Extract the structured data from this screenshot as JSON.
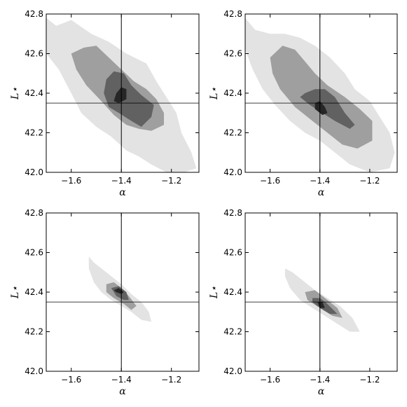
{
  "figure": {
    "layout": "2x2 grid of contour plots",
    "colors": {
      "contour_levels": [
        "#e3e3e3",
        "#9f9f9f",
        "#616161",
        "#262626"
      ],
      "axes": "#000000",
      "reference_lines": "#000000"
    }
  },
  "chart_data": [
    {
      "type": "contour",
      "panel": "top-left",
      "xlabel": "α",
      "ylabel": "L⋆",
      "xlim": [
        -1.7,
        -1.09
      ],
      "ylim": [
        42.0,
        42.8
      ],
      "xticks": [
        -1.6,
        -1.4,
        -1.2
      ],
      "xtick_labels": [
        "−1.6",
        "−1.4",
        "−1.2"
      ],
      "yticks": [
        42.0,
        42.2,
        42.4,
        42.6,
        42.8
      ],
      "ytick_labels": [
        "42.0",
        "42.2",
        "42.4",
        "42.6",
        "42.8"
      ],
      "reference_lines": {
        "x": -1.4,
        "y": 42.35
      },
      "contours": [
        {
          "level": 1,
          "points": [
            [
              -1.7,
              42.78
            ],
            [
              -1.66,
              42.74
            ],
            [
              -1.6,
              42.77
            ],
            [
              -1.52,
              42.7
            ],
            [
              -1.45,
              42.66
            ],
            [
              -1.38,
              42.6
            ],
            [
              -1.3,
              42.55
            ],
            [
              -1.26,
              42.46
            ],
            [
              -1.22,
              42.38
            ],
            [
              -1.18,
              42.3
            ],
            [
              -1.16,
              42.2
            ],
            [
              -1.12,
              42.1
            ],
            [
              -1.1,
              42.02
            ],
            [
              -1.15,
              42.0
            ],
            [
              -1.22,
              42.0
            ],
            [
              -1.28,
              42.04
            ],
            [
              -1.33,
              42.08
            ],
            [
              -1.38,
              42.11
            ],
            [
              -1.44,
              42.18
            ],
            [
              -1.5,
              42.23
            ],
            [
              -1.56,
              42.3
            ],
            [
              -1.6,
              42.4
            ],
            [
              -1.65,
              42.52
            ],
            [
              -1.7,
              42.6
            ]
          ]
        },
        {
          "level": 2,
          "points": [
            [
              -1.6,
              42.6
            ],
            [
              -1.55,
              42.63
            ],
            [
              -1.5,
              42.64
            ],
            [
              -1.45,
              42.58
            ],
            [
              -1.4,
              42.52
            ],
            [
              -1.35,
              42.46
            ],
            [
              -1.3,
              42.42
            ],
            [
              -1.26,
              42.37
            ],
            [
              -1.23,
              42.3
            ],
            [
              -1.23,
              42.24
            ],
            [
              -1.28,
              42.21
            ],
            [
              -1.33,
              42.22
            ],
            [
              -1.38,
              42.24
            ],
            [
              -1.43,
              42.29
            ],
            [
              -1.48,
              42.36
            ],
            [
              -1.54,
              42.44
            ],
            [
              -1.58,
              42.52
            ]
          ]
        },
        {
          "level": 3,
          "points": [
            [
              -1.46,
              42.47
            ],
            [
              -1.43,
              42.51
            ],
            [
              -1.39,
              42.5
            ],
            [
              -1.36,
              42.44
            ],
            [
              -1.32,
              42.39
            ],
            [
              -1.27,
              42.34
            ],
            [
              -1.28,
              42.28
            ],
            [
              -1.32,
              42.23
            ],
            [
              -1.36,
              42.26
            ],
            [
              -1.41,
              42.3
            ],
            [
              -1.45,
              42.33
            ],
            [
              -1.47,
              42.4
            ]
          ]
        },
        {
          "level": 4,
          "points": [
            [
              -1.42,
              42.4
            ],
            [
              -1.4,
              42.43
            ],
            [
              -1.38,
              42.42
            ],
            [
              -1.38,
              42.37
            ],
            [
              -1.41,
              42.35
            ],
            [
              -1.43,
              42.36
            ]
          ]
        }
      ]
    },
    {
      "type": "contour",
      "panel": "top-right",
      "xlabel": "α",
      "ylabel": "L⋆",
      "xlim": [
        -1.7,
        -1.09
      ],
      "ylim": [
        42.0,
        42.8
      ],
      "xticks": [
        -1.6,
        -1.4,
        -1.2
      ],
      "xtick_labels": [
        "−1.6",
        "−1.4",
        "−1.2"
      ],
      "yticks": [
        42.0,
        42.2,
        42.4,
        42.6,
        42.8
      ],
      "ytick_labels": [
        "42.0",
        "42.2",
        "42.4",
        "42.6",
        "42.8"
      ],
      "reference_lines": {
        "x": -1.4,
        "y": 42.35
      },
      "contours": [
        {
          "level": 1,
          "points": [
            [
              -1.7,
              42.78
            ],
            [
              -1.66,
              42.72
            ],
            [
              -1.6,
              42.7
            ],
            [
              -1.54,
              42.7
            ],
            [
              -1.48,
              42.68
            ],
            [
              -1.42,
              42.64
            ],
            [
              -1.36,
              42.58
            ],
            [
              -1.3,
              42.5
            ],
            [
              -1.26,
              42.42
            ],
            [
              -1.2,
              42.36
            ],
            [
              -1.16,
              42.28
            ],
            [
              -1.12,
              42.2
            ],
            [
              -1.1,
              42.1
            ],
            [
              -1.12,
              42.02
            ],
            [
              -1.2,
              42.0
            ],
            [
              -1.28,
              42.04
            ],
            [
              -1.34,
              42.1
            ],
            [
              -1.4,
              42.16
            ],
            [
              -1.46,
              42.2
            ],
            [
              -1.52,
              42.26
            ],
            [
              -1.58,
              42.34
            ],
            [
              -1.63,
              42.42
            ],
            [
              -1.67,
              42.52
            ],
            [
              -1.7,
              42.62
            ]
          ]
        },
        {
          "level": 2,
          "points": [
            [
              -1.6,
              42.58
            ],
            [
              -1.55,
              42.64
            ],
            [
              -1.5,
              42.62
            ],
            [
              -1.46,
              42.56
            ],
            [
              -1.42,
              42.5
            ],
            [
              -1.37,
              42.44
            ],
            [
              -1.3,
              42.38
            ],
            [
              -1.24,
              42.32
            ],
            [
              -1.19,
              42.26
            ],
            [
              -1.19,
              42.16
            ],
            [
              -1.25,
              42.12
            ],
            [
              -1.31,
              42.14
            ],
            [
              -1.37,
              42.2
            ],
            [
              -1.43,
              42.26
            ],
            [
              -1.5,
              42.33
            ],
            [
              -1.56,
              42.42
            ],
            [
              -1.59,
              42.5
            ]
          ]
        },
        {
          "level": 3,
          "points": [
            [
              -1.46,
              42.4
            ],
            [
              -1.42,
              42.42
            ],
            [
              -1.38,
              42.42
            ],
            [
              -1.34,
              42.38
            ],
            [
              -1.3,
              42.3
            ],
            [
              -1.26,
              42.24
            ],
            [
              -1.28,
              42.22
            ],
            [
              -1.34,
              42.26
            ],
            [
              -1.39,
              42.3
            ],
            [
              -1.44,
              42.34
            ],
            [
              -1.48,
              42.38
            ]
          ]
        },
        {
          "level": 4,
          "points": [
            [
              -1.42,
              42.35
            ],
            [
              -1.4,
              42.36
            ],
            [
              -1.38,
              42.33
            ],
            [
              -1.37,
              42.3
            ],
            [
              -1.39,
              42.29
            ],
            [
              -1.42,
              42.32
            ]
          ]
        }
      ]
    },
    {
      "type": "contour",
      "panel": "bottom-left",
      "xlabel": "α",
      "ylabel": "L⋆",
      "xlim": [
        -1.7,
        -1.09
      ],
      "ylim": [
        42.0,
        42.8
      ],
      "xticks": [
        -1.6,
        -1.4,
        -1.2
      ],
      "xtick_labels": [
        "−1.6",
        "−1.4",
        "−1.2"
      ],
      "yticks": [
        42.0,
        42.2,
        42.4,
        42.6,
        42.8
      ],
      "ytick_labels": [
        "42.0",
        "42.2",
        "42.4",
        "42.6",
        "42.8"
      ],
      "reference_lines": {
        "x": -1.4,
        "y": 42.35
      },
      "contours": [
        {
          "level": 1,
          "points": [
            [
              -1.53,
              42.58
            ],
            [
              -1.51,
              42.55
            ],
            [
              -1.48,
              42.52
            ],
            [
              -1.44,
              42.48
            ],
            [
              -1.4,
              42.44
            ],
            [
              -1.36,
              42.39
            ],
            [
              -1.32,
              42.35
            ],
            [
              -1.29,
              42.3
            ],
            [
              -1.28,
              42.25
            ],
            [
              -1.32,
              42.26
            ],
            [
              -1.36,
              42.3
            ],
            [
              -1.4,
              42.33
            ],
            [
              -1.44,
              42.36
            ],
            [
              -1.48,
              42.4
            ],
            [
              -1.51,
              42.45
            ],
            [
              -1.53,
              42.52
            ]
          ]
        },
        {
          "level": 2,
          "points": [
            [
              -1.46,
              42.44
            ],
            [
              -1.43,
              42.45
            ],
            [
              -1.4,
              42.42
            ],
            [
              -1.37,
              42.38
            ],
            [
              -1.34,
              42.33
            ],
            [
              -1.36,
              42.31
            ],
            [
              -1.39,
              42.34
            ],
            [
              -1.43,
              42.37
            ],
            [
              -1.46,
              42.4
            ]
          ]
        },
        {
          "level": 3,
          "points": [
            [
              -1.44,
              42.42
            ],
            [
              -1.41,
              42.43
            ],
            [
              -1.38,
              42.4
            ],
            [
              -1.37,
              42.36
            ],
            [
              -1.39,
              42.36
            ],
            [
              -1.42,
              42.38
            ]
          ]
        },
        {
          "level": 4,
          "points": [
            [
              -1.43,
              42.41
            ],
            [
              -1.41,
              42.42
            ],
            [
              -1.39,
              42.4
            ],
            [
              -1.4,
              42.39
            ],
            [
              -1.42,
              42.4
            ]
          ]
        }
      ]
    },
    {
      "type": "contour",
      "panel": "bottom-right",
      "xlabel": "α",
      "ylabel": "L⋆",
      "xlim": [
        -1.7,
        -1.09
      ],
      "ylim": [
        42.0,
        42.8
      ],
      "xticks": [
        -1.6,
        -1.4,
        -1.2
      ],
      "xtick_labels": [
        "−1.6",
        "−1.4",
        "−1.2"
      ],
      "yticks": [
        42.0,
        42.2,
        42.4,
        42.6,
        42.8
      ],
      "ytick_labels": [
        "42.0",
        "42.2",
        "42.4",
        "42.6",
        "42.8"
      ],
      "reference_lines": {
        "x": -1.4,
        "y": 42.35
      },
      "contours": [
        {
          "level": 1,
          "points": [
            [
              -1.54,
              42.52
            ],
            [
              -1.51,
              42.5
            ],
            [
              -1.47,
              42.46
            ],
            [
              -1.42,
              42.41
            ],
            [
              -1.37,
              42.37
            ],
            [
              -1.32,
              42.33
            ],
            [
              -1.27,
              42.27
            ],
            [
              -1.24,
              42.2
            ],
            [
              -1.28,
              42.2
            ],
            [
              -1.33,
              42.24
            ],
            [
              -1.38,
              42.28
            ],
            [
              -1.43,
              42.32
            ],
            [
              -1.48,
              42.36
            ],
            [
              -1.52,
              42.42
            ],
            [
              -1.54,
              42.48
            ]
          ]
        },
        {
          "level": 2,
          "points": [
            [
              -1.46,
              42.4
            ],
            [
              -1.42,
              42.41
            ],
            [
              -1.38,
              42.37
            ],
            [
              -1.33,
              42.32
            ],
            [
              -1.31,
              42.27
            ],
            [
              -1.35,
              42.28
            ],
            [
              -1.4,
              42.32
            ],
            [
              -1.45,
              42.36
            ]
          ]
        },
        {
          "level": 3,
          "points": [
            [
              -1.43,
              42.37
            ],
            [
              -1.4,
              42.37
            ],
            [
              -1.37,
              42.34
            ],
            [
              -1.33,
              42.29
            ],
            [
              -1.36,
              42.29
            ],
            [
              -1.4,
              42.32
            ],
            [
              -1.43,
              42.35
            ]
          ]
        },
        {
          "level": 4,
          "points": [
            [
              -1.41,
              42.35
            ],
            [
              -1.39,
              42.35
            ],
            [
              -1.38,
              42.32
            ],
            [
              -1.4,
              42.32
            ]
          ]
        }
      ]
    }
  ]
}
